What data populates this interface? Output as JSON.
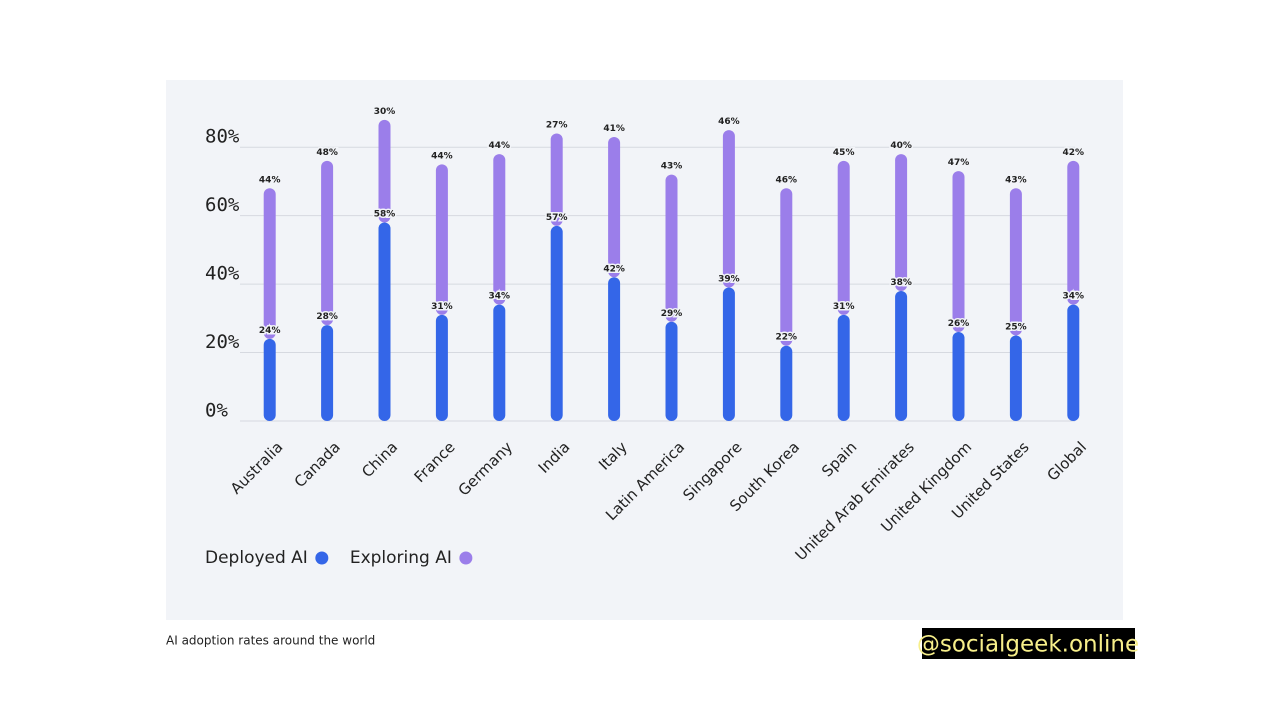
{
  "chart_data": {
    "type": "bar",
    "stacked": true,
    "categories": [
      "Australia",
      "Canada",
      "China",
      "France",
      "Germany",
      "India",
      "Italy",
      "Latin America",
      "Singapore",
      "South Korea",
      "Spain",
      "United Arab Emirates",
      "United Kingdom",
      "United States",
      "Global"
    ],
    "series": [
      {
        "name": "Deployed AI",
        "color": "#3466e8",
        "values": [
          24,
          28,
          58,
          31,
          34,
          57,
          42,
          29,
          39,
          22,
          31,
          38,
          26,
          25,
          34
        ],
        "value_labels": [
          "24%",
          "28%",
          "58%",
          "31%",
          "34%",
          "57%",
          "42%",
          "29%",
          "39%",
          "22%",
          "31%",
          "38%",
          "26%",
          "25%",
          "34%"
        ]
      },
      {
        "name": "Exploring AI",
        "color": "#9b7eea",
        "values": [
          44,
          48,
          30,
          44,
          44,
          27,
          41,
          43,
          46,
          46,
          45,
          40,
          47,
          43,
          42
        ],
        "value_labels": [
          "44%",
          "48%",
          "30%",
          "44%",
          "44%",
          "27%",
          "41%",
          "43%",
          "46%",
          "46%",
          "45%",
          "40%",
          "47%",
          "43%",
          "42%"
        ]
      }
    ],
    "ylim": [
      0,
      90
    ],
    "yticks": [
      {
        "value": 0,
        "label": "0%"
      },
      {
        "value": 20,
        "label": "20%"
      },
      {
        "value": 40,
        "label": "40%"
      },
      {
        "value": 60,
        "label": "60%"
      },
      {
        "value": 80,
        "label": "80%"
      }
    ],
    "grid": true
  },
  "caption": "AI adoption rates around the world",
  "watermark": "@socialgeek.online"
}
